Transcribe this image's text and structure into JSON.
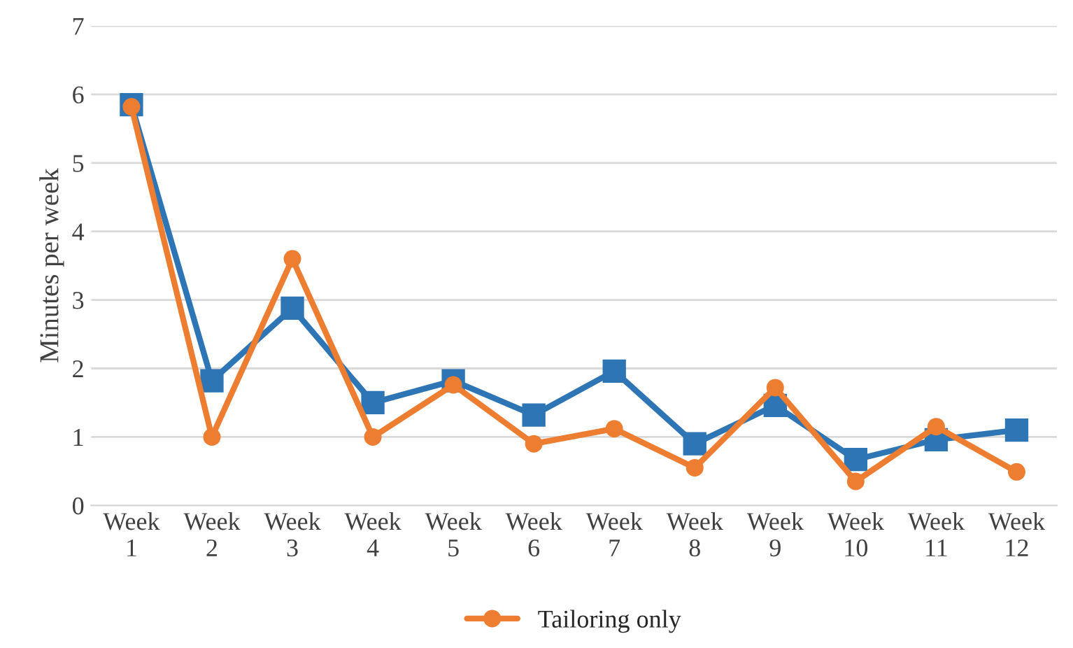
{
  "chart_data": {
    "type": "line",
    "ylabel": "Minutes per week",
    "categories": [
      "Week\n1",
      "Week\n2",
      "Week\n3",
      "Week\n4",
      "Week\n5",
      "Week\n6",
      "Week\n7",
      "Week\n8",
      "Week\n9",
      "Week\n10",
      "Week\n11",
      "Week\n12"
    ],
    "series": [
      {
        "color": "#2e75b6",
        "marker": "square",
        "values": [
          5.85,
          1.82,
          2.88,
          1.5,
          1.82,
          1.32,
          1.96,
          0.9,
          1.46,
          0.67,
          0.96,
          1.1
        ]
      },
      {
        "name": "Tailoring only",
        "color": "#ed7d31",
        "marker": "circle",
        "values": [
          5.82,
          1.0,
          3.6,
          1.0,
          1.76,
          0.9,
          1.12,
          0.55,
          1.72,
          0.35,
          1.15,
          0.49
        ]
      }
    ],
    "ylim": [
      0,
      7
    ],
    "yticks": [
      0,
      1,
      2,
      3,
      4,
      5,
      6,
      7
    ],
    "grid": "y",
    "legend": "bottom",
    "line_style": "solid"
  }
}
